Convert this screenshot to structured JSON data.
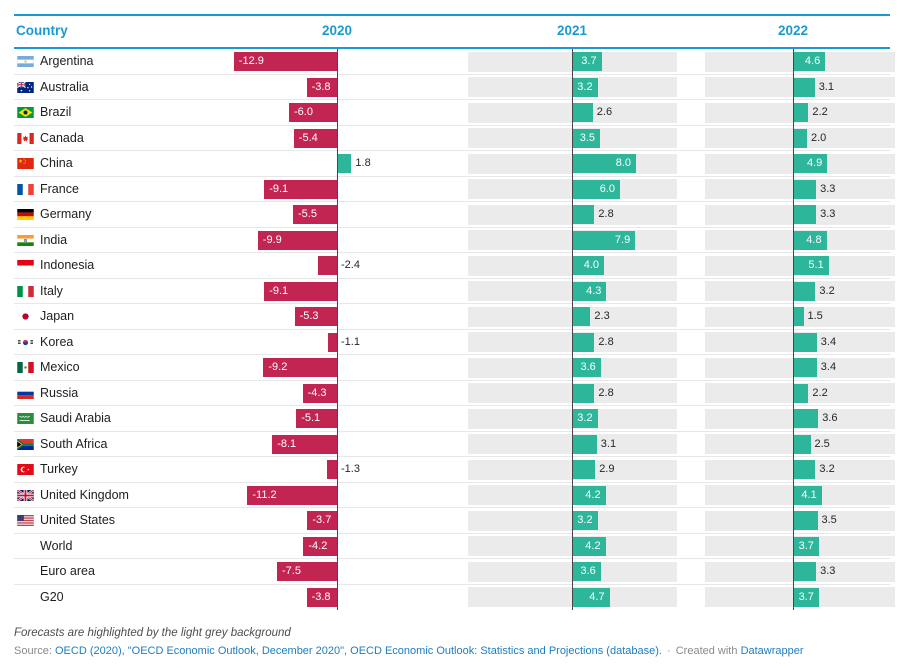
{
  "colors": {
    "header_blue": "#1a9ad2",
    "link_blue": "#1d7dc2",
    "bar_negative": "#c32552",
    "bar_positive": "#2db69a",
    "forecast_background": "#ebebeb",
    "axis_line": "#474747"
  },
  "table_header": {
    "country": "Country"
  },
  "chart_data": {
    "type": "bar",
    "title": "",
    "columns": [
      "2020",
      "2021",
      "2022"
    ],
    "forecast_columns": [
      "2021",
      "2022"
    ],
    "value_format": "one_decimal",
    "rows": [
      {
        "country": "Argentina",
        "flag": "argentina",
        "values": [
          -12.9,
          3.7,
          4.6
        ]
      },
      {
        "country": "Australia",
        "flag": "australia",
        "values": [
          -3.8,
          3.2,
          3.1
        ]
      },
      {
        "country": "Brazil",
        "flag": "brazil",
        "values": [
          -6.0,
          2.6,
          2.2
        ]
      },
      {
        "country": "Canada",
        "flag": "canada",
        "values": [
          -5.4,
          3.5,
          2.0
        ]
      },
      {
        "country": "China",
        "flag": "china",
        "values": [
          1.8,
          8.0,
          4.9
        ]
      },
      {
        "country": "France",
        "flag": "france",
        "values": [
          -9.1,
          6.0,
          3.3
        ]
      },
      {
        "country": "Germany",
        "flag": "germany",
        "values": [
          -5.5,
          2.8,
          3.3
        ]
      },
      {
        "country": "India",
        "flag": "india",
        "values": [
          -9.9,
          7.9,
          4.8
        ]
      },
      {
        "country": "Indonesia",
        "flag": "indonesia",
        "values": [
          -2.4,
          4.0,
          5.1
        ]
      },
      {
        "country": "Italy",
        "flag": "italy",
        "values": [
          -9.1,
          4.3,
          3.2
        ]
      },
      {
        "country": "Japan",
        "flag": "japan",
        "values": [
          -5.3,
          2.3,
          1.5
        ]
      },
      {
        "country": "Korea",
        "flag": "korea",
        "values": [
          -1.1,
          2.8,
          3.4
        ]
      },
      {
        "country": "Mexico",
        "flag": "mexico",
        "values": [
          -9.2,
          3.6,
          3.4
        ]
      },
      {
        "country": "Russia",
        "flag": "russia",
        "values": [
          -4.3,
          2.8,
          2.2
        ]
      },
      {
        "country": "Saudi Arabia",
        "flag": "saudi-arabia",
        "values": [
          -5.1,
          3.2,
          3.6
        ]
      },
      {
        "country": "South Africa",
        "flag": "south-africa",
        "values": [
          -8.1,
          3.1,
          2.5
        ]
      },
      {
        "country": "Turkey",
        "flag": "turkey",
        "values": [
          -1.3,
          2.9,
          3.2
        ]
      },
      {
        "country": "United Kingdom",
        "flag": "united-kingdom",
        "values": [
          -11.2,
          4.2,
          4.1
        ]
      },
      {
        "country": "United States",
        "flag": "united-states",
        "values": [
          -3.7,
          3.2,
          3.5
        ]
      },
      {
        "country": "World",
        "flag": null,
        "values": [
          -4.2,
          4.2,
          3.7
        ]
      },
      {
        "country": "Euro area",
        "flag": null,
        "values": [
          -7.5,
          3.6,
          3.3
        ]
      },
      {
        "country": "G20",
        "flag": null,
        "values": [
          -3.8,
          4.7,
          3.7
        ]
      }
    ]
  },
  "footer": {
    "note": "Forecasts are highlighted by the light grey background",
    "source_prefix": "Source:",
    "source_text": "OECD (2020), \"OECD Economic Outlook, December 2020\", OECD Economic Outlook: Statistics and Projections (database).",
    "separator": "·",
    "created_with": "Created with",
    "brand": "Datawrapper"
  }
}
